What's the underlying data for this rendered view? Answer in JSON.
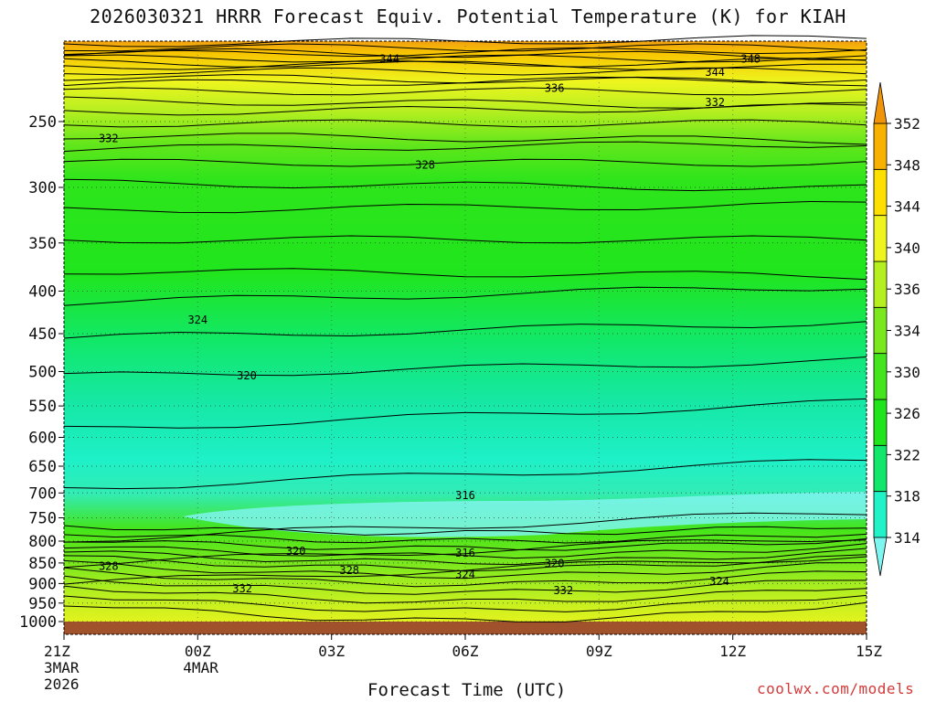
{
  "title": "2026030321 HRRR Forecast Equiv. Potential Temperature (K) for KIAH",
  "xlabel": "Forecast Time (UTC)",
  "credit": "coolwx.com/models",
  "colors": {
    "terrain": "#a0522d",
    "scale": [
      "#7ef5ef",
      "#21f2c8",
      "#11e86b",
      "#20e51d",
      "#44e51a",
      "#7ae81d",
      "#b6ef20",
      "#eef51e",
      "#fde000",
      "#f8b100",
      "#f0950a"
    ]
  },
  "chart_data": {
    "type": "heatmap",
    "variable": "Equiv. Potential Temperature (K)",
    "x_ticks": [
      {
        "label": "21Z",
        "sub": [
          "3MAR",
          "2026"
        ]
      },
      {
        "label": "00Z",
        "sub": [
          "4MAR"
        ]
      },
      {
        "label": "03Z",
        "sub": []
      },
      {
        "label": "06Z",
        "sub": []
      },
      {
        "label": "09Z",
        "sub": []
      },
      {
        "label": "12Z",
        "sub": []
      },
      {
        "label": "15Z",
        "sub": []
      }
    ],
    "x_hours": [
      0,
      3,
      6,
      9,
      12,
      15,
      18
    ],
    "y_axis": {
      "scale": "log-pressure",
      "range_hPa": [
        1000,
        200
      ],
      "ticks": [
        250,
        300,
        350,
        400,
        450,
        500,
        550,
        600,
        650,
        700,
        750,
        800,
        850,
        900,
        950,
        1000
      ]
    },
    "colorbar": {
      "levels": [
        314,
        318,
        322,
        326,
        330,
        334,
        336,
        340,
        344,
        348,
        352
      ],
      "extend": "both"
    },
    "contour_labels": [
      {
        "value": "344",
        "hour": 7.3,
        "p": 210
      },
      {
        "value": "348",
        "hour": 15.4,
        "p": 210
      },
      {
        "value": "344",
        "hour": 14.6,
        "p": 218
      },
      {
        "value": "336",
        "hour": 11.0,
        "p": 228
      },
      {
        "value": "332",
        "hour": 14.6,
        "p": 237
      },
      {
        "value": "332",
        "hour": 1.0,
        "p": 262
      },
      {
        "value": "328",
        "hour": 8.1,
        "p": 282
      },
      {
        "value": "324",
        "hour": 3.0,
        "p": 433
      },
      {
        "value": "320",
        "hour": 4.1,
        "p": 506
      },
      {
        "value": "316",
        "hour": 9.0,
        "p": 705
      },
      {
        "value": "320",
        "hour": 5.2,
        "p": 823
      },
      {
        "value": "316",
        "hour": 9.0,
        "p": 827
      },
      {
        "value": "328",
        "hour": 6.4,
        "p": 868
      },
      {
        "value": "320",
        "hour": 11.0,
        "p": 851
      },
      {
        "value": "324",
        "hour": 9.0,
        "p": 878
      },
      {
        "value": "324",
        "hour": 14.7,
        "p": 894
      },
      {
        "value": "328",
        "hour": 1.0,
        "p": 858
      },
      {
        "value": "332",
        "hour": 4.0,
        "p": 913
      },
      {
        "value": "332",
        "hour": 11.2,
        "p": 918
      }
    ]
  }
}
